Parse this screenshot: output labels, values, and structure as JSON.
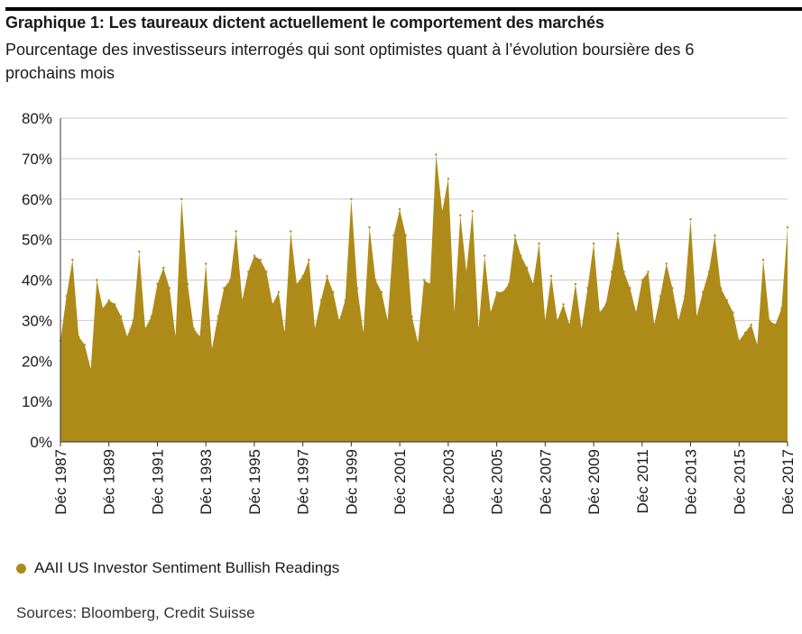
{
  "title": "Graphique 1: Les taureaux dictent actuellement le comportement des marchés",
  "subtitle": "Pourcentage des investisseurs interrogés qui sont optimistes quant à l’évolution boursière des 6 prochains mois",
  "source": "Sources: Bloomberg, Credit Suisse",
  "colors": {
    "area": "#ae8b18",
    "grid": "#cccccc",
    "axis": "#333333"
  },
  "chart_data": {
    "type": "area",
    "title": "Graphique 1: Les taureaux dictent actuellement le comportement des marchés",
    "subtitle": "Pourcentage des investisseurs interrogés qui sont optimistes quant à l’évolution boursière des 6 prochains mois",
    "xlim": [
      "Dec 1987",
      "Dec 2017"
    ],
    "ylim": [
      0,
      80
    ],
    "y_ticks": [
      "0%",
      "10%",
      "20%",
      "30%",
      "40%",
      "50%",
      "60%",
      "70%",
      "80%"
    ],
    "x_ticks": [
      "Déc 1987",
      "Déc 1989",
      "Déc 1991",
      "Déc 1993",
      "Déc 1995",
      "Déc 1997",
      "Déc 1999",
      "Déc 2001",
      "Déc 2003",
      "Déc 2005",
      "Déc 2007",
      "Déc 2009",
      "Déc 2011",
      "Déc 2013",
      "Déc 2015",
      "Déc 2017"
    ],
    "grid": "horizontal",
    "legend_position": "bottom-left",
    "series": [
      {
        "name": "AAII US Investor Sentiment Bullish Readings",
        "color": "#ae8b18",
        "x": [
          "1987-12",
          "1988-03",
          "1988-06",
          "1988-09",
          "1988-12",
          "1989-03",
          "1989-06",
          "1989-09",
          "1989-12",
          "1990-03",
          "1990-06",
          "1990-09",
          "1990-12",
          "1991-03",
          "1991-06",
          "1991-09",
          "1991-12",
          "1992-03",
          "1992-06",
          "1992-09",
          "1992-12",
          "1993-03",
          "1993-06",
          "1993-09",
          "1993-12",
          "1994-03",
          "1994-06",
          "1994-09",
          "1994-12",
          "1995-03",
          "1995-06",
          "1995-09",
          "1995-12",
          "1996-03",
          "1996-06",
          "1996-09",
          "1996-12",
          "1997-03",
          "1997-06",
          "1997-09",
          "1997-12",
          "1998-03",
          "1998-06",
          "1998-09",
          "1998-12",
          "1999-03",
          "1999-06",
          "1999-09",
          "1999-12",
          "2000-03",
          "2000-06",
          "2000-09",
          "2000-12",
          "2001-03",
          "2001-06",
          "2001-09",
          "2001-12",
          "2002-03",
          "2002-06",
          "2002-09",
          "2002-12",
          "2003-03",
          "2003-06",
          "2003-09",
          "2003-12",
          "2004-03",
          "2004-06",
          "2004-09",
          "2004-12",
          "2005-03",
          "2005-06",
          "2005-09",
          "2005-12",
          "2006-03",
          "2006-06",
          "2006-09",
          "2006-12",
          "2007-03",
          "2007-06",
          "2007-09",
          "2007-12",
          "2008-03",
          "2008-06",
          "2008-09",
          "2008-12",
          "2009-03",
          "2009-06",
          "2009-09",
          "2009-12",
          "2010-03",
          "2010-06",
          "2010-09",
          "2010-12",
          "2011-03",
          "2011-06",
          "2011-09",
          "2011-12",
          "2012-03",
          "2012-06",
          "2012-09",
          "2012-12",
          "2013-03",
          "2013-06",
          "2013-09",
          "2013-12",
          "2014-03",
          "2014-06",
          "2014-09",
          "2014-12",
          "2015-03",
          "2015-06",
          "2015-09",
          "2015-12",
          "2016-03",
          "2016-06",
          "2016-09",
          "2016-12",
          "2017-03",
          "2017-06",
          "2017-09",
          "2017-12"
        ],
        "values": [
          25,
          36,
          45,
          26,
          24,
          18,
          40,
          33,
          35,
          34,
          31,
          26,
          30,
          47,
          28,
          31,
          39,
          43,
          38,
          26,
          60,
          39,
          28,
          26,
          44,
          23,
          31,
          38,
          40,
          52,
          35,
          42,
          46,
          45,
          42,
          34,
          37,
          27,
          52,
          39,
          41,
          45,
          28,
          35,
          41,
          37,
          30,
          35,
          60,
          38,
          27,
          53,
          40,
          37,
          30,
          51,
          57.5,
          51,
          31,
          24.5,
          40,
          39,
          71,
          57,
          65,
          32,
          56,
          42,
          57,
          28,
          46,
          32,
          37,
          37,
          39,
          51,
          46,
          43,
          39,
          49,
          30,
          41,
          30,
          34,
          29,
          39,
          28,
          38,
          49,
          32,
          34,
          42,
          51.5,
          42,
          38,
          32,
          40,
          42,
          29,
          36,
          44,
          38,
          30,
          36,
          55,
          31,
          37,
          42,
          51,
          38,
          35,
          32,
          25,
          27,
          29,
          24,
          45,
          30,
          29,
          33,
          53
        ]
      }
    ]
  }
}
